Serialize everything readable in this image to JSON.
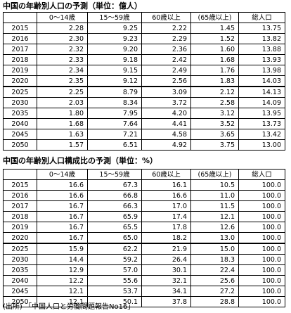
{
  "table1": {
    "title": "中国の年齢別人口の予測（単位：億人）",
    "headers": [
      "",
      "0～14歳",
      "15～59歳",
      "60歳以上",
      "(65歳以上)",
      "総人口"
    ],
    "rows": [
      [
        "2015",
        "2.28",
        "9.25",
        "2.22",
        "1.45",
        "13.75"
      ],
      [
        "2016",
        "2.30",
        "9.23",
        "2.29",
        "1.52",
        "13.82"
      ],
      [
        "2017",
        "2.32",
        "9.20",
        "2.36",
        "1.60",
        "13.88"
      ],
      [
        "2018",
        "2.33",
        "9.18",
        "2.42",
        "1.68",
        "13.93"
      ],
      [
        "2019",
        "2.34",
        "9.15",
        "2.49",
        "1.76",
        "13.98"
      ],
      [
        "2020",
        "2.35",
        "9.12",
        "2.56",
        "1.83",
        "14.03"
      ],
      [
        "2025",
        "2.25",
        "8.79",
        "3.09",
        "2.12",
        "14.13"
      ],
      [
        "2030",
        "2.03",
        "8.34",
        "3.72",
        "2.58",
        "14.09"
      ],
      [
        "2035",
        "1.80",
        "7.95",
        "4.20",
        "3.12",
        "13.95"
      ],
      [
        "2040",
        "1.68",
        "7.64",
        "4.41",
        "3.52",
        "13.73"
      ],
      [
        "2045",
        "1.63",
        "7.21",
        "4.58",
        "3.65",
        "13.42"
      ],
      [
        "2050",
        "1.57",
        "6.51",
        "4.92",
        "3.75",
        "13.00"
      ]
    ]
  },
  "table2": {
    "title": "中国の年齢別人口構成比の予測（単位：%）",
    "headers": [
      "",
      "0～14歳",
      "15～59歳",
      "60歳以上",
      "(65歳以上)",
      "総人口"
    ],
    "rows": [
      [
        "2015",
        "16.6",
        "67.3",
        "16.1",
        "10.5",
        "100.0"
      ],
      [
        "2016",
        "16.6",
        "66.8",
        "16.6",
        "11.0",
        "100.0"
      ],
      [
        "2017",
        "16.7",
        "66.3",
        "17.0",
        "11.5",
        "100.0"
      ],
      [
        "2018",
        "16.7",
        "65.9",
        "17.4",
        "12.1",
        "100.0"
      ],
      [
        "2019",
        "16.7",
        "65.5",
        "17.8",
        "12.6",
        "100.0"
      ],
      [
        "2020",
        "16.7",
        "65.0",
        "18.2",
        "13.0",
        "100.0"
      ],
      [
        "2025",
        "15.9",
        "62.2",
        "21.9",
        "15.0",
        "100.0"
      ],
      [
        "2030",
        "14.4",
        "59.2",
        "26.4",
        "18.3",
        "100.0"
      ],
      [
        "2035",
        "12.9",
        "57.0",
        "30.1",
        "22.4",
        "100.0"
      ],
      [
        "2040",
        "12.2",
        "55.6",
        "32.1",
        "25.6",
        "100.0"
      ],
      [
        "2045",
        "12.1",
        "53.7",
        "34.1",
        "27.2",
        "100.0"
      ],
      [
        "2050",
        "12.1",
        "50.1",
        "37.8",
        "28.8",
        "100.0"
      ]
    ]
  },
  "source_note": "(出所) 「中国人口と労働問題報告No16」"
}
